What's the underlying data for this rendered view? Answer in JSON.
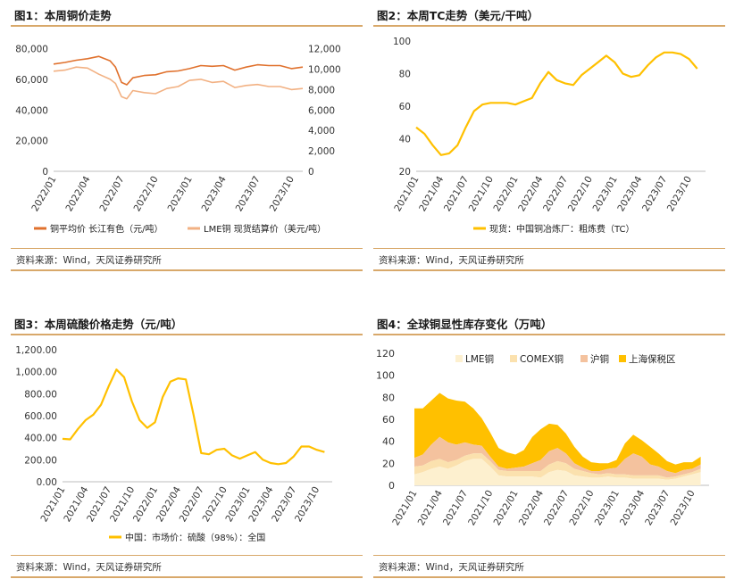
{
  "source_text": "资料来源：Wind，天风证券研究所",
  "colors": {
    "accent_rule": "#d8a86a",
    "dark_orange": "#E0712D",
    "light_orange": "#F2B183",
    "gold": "#FFC000",
    "lme_fill": "#FDF0CF",
    "comex_fill": "#FBE1AE",
    "shfe_fill": "#F4C29E",
    "bonded_fill": "#FFC000"
  },
  "charts": [
    {
      "title": "图1：本周铜价走势",
      "chart_data": {
        "type": "line",
        "x_tick_labels": [
          "2022/01",
          "2022/04",
          "2022/07",
          "2022/10",
          "2023/01",
          "2023/04",
          "2023/07",
          "2023/10"
        ],
        "x_range": [
          "2022/01",
          "2023/11"
        ],
        "y_left_ticks": [
          "0",
          "20,000",
          "40,000",
          "60,000",
          "80,000"
        ],
        "y_right_ticks": [
          "0",
          "2,000",
          "4,000",
          "6,000",
          "8,000",
          "10,000",
          "12,000"
        ],
        "ylim_left": [
          0,
          85000
        ],
        "ylim_right": [
          0,
          12750
        ],
        "series": [
          {
            "name": "铜平均价 长江有色（元/吨）",
            "axis": "left",
            "color": "#E0712D",
            "x": [
              "2022/01",
              "2022/02",
              "2022/03",
              "2022/04",
              "2022/05",
              "2022/06",
              "2022/06/15",
              "2022/07",
              "2022/07/15",
              "2022/08",
              "2022/09",
              "2022/10",
              "2022/11",
              "2022/12",
              "2023/01",
              "2023/02",
              "2023/03",
              "2023/04",
              "2023/05",
              "2023/06",
              "2023/07",
              "2023/08",
              "2023/09",
              "2023/10",
              "2023/11"
            ],
            "y": [
              70000,
              71000,
              72500,
              73500,
              75000,
              72000,
              68000,
              58000,
              56500,
              61000,
              62500,
              63000,
              65000,
              65500,
              67000,
              69000,
              68500,
              69000,
              66000,
              68000,
              69500,
              69000,
              69000,
              67000,
              68000
            ]
          },
          {
            "name": "LME铜 现货结算价（美元/吨）",
            "axis": "right",
            "color": "#F2B183",
            "x": [
              "2022/01",
              "2022/02",
              "2022/03",
              "2022/04",
              "2022/05",
              "2022/06",
              "2022/06/15",
              "2022/07",
              "2022/07/15",
              "2022/08",
              "2022/09",
              "2022/10",
              "2022/11",
              "2022/12",
              "2023/01",
              "2023/02",
              "2023/03",
              "2023/04",
              "2023/05",
              "2023/06",
              "2023/07",
              "2023/08",
              "2023/09",
              "2023/10",
              "2023/11"
            ],
            "y": [
              9800,
              9900,
              10200,
              10100,
              9500,
              9000,
              8600,
              7300,
              7100,
              7900,
              7700,
              7600,
              8100,
              8300,
              8900,
              9000,
              8700,
              8800,
              8200,
              8400,
              8500,
              8300,
              8300,
              8000,
              8100
            ]
          }
        ]
      }
    },
    {
      "title": "图2：本周TC走势（美元/干吨）",
      "chart_data": {
        "type": "line",
        "x_tick_labels": [
          "2021/01",
          "2021/04",
          "2021/07",
          "2021/10",
          "2022/01",
          "2022/04",
          "2022/07",
          "2022/10",
          "2023/01",
          "2023/04",
          "2023/07",
          "2023/10"
        ],
        "x_range": [
          "2021/01",
          "2023/12"
        ],
        "y_ticks": [
          "20",
          "40",
          "60",
          "80",
          "100"
        ],
        "ylim": [
          20,
          100
        ],
        "series": [
          {
            "name": "现货：中国铜冶炼厂：粗炼费（TC）",
            "color": "#FFC000",
            "x": [
              "2021/01",
              "2021/02",
              "2021/03",
              "2021/04",
              "2021/05",
              "2021/06",
              "2021/07",
              "2021/08",
              "2021/09",
              "2021/10",
              "2021/11",
              "2021/12",
              "2022/01",
              "2022/02",
              "2022/03",
              "2022/04",
              "2022/05",
              "2022/06",
              "2022/07",
              "2022/08",
              "2022/09",
              "2022/10",
              "2022/11",
              "2022/12",
              "2023/01",
              "2023/02",
              "2023/03",
              "2023/04",
              "2023/05",
              "2023/06",
              "2023/07",
              "2023/08",
              "2023/09",
              "2023/10",
              "2023/11"
            ],
            "y": [
              47,
              43,
              36,
              30,
              31,
              36,
              47,
              57,
              61,
              62,
              62,
              62,
              61,
              63,
              65,
              74,
              81,
              76,
              74,
              73,
              79,
              83,
              87,
              91,
              87,
              80,
              78,
              79,
              85,
              90,
              93,
              93,
              92,
              89,
              83
            ]
          }
        ]
      }
    },
    {
      "title": "图3：本周硫酸价格走势（元/吨）",
      "chart_data": {
        "type": "line",
        "x_tick_labels": [
          "2021/01",
          "2021/04",
          "2021/07",
          "2021/10",
          "2022/01",
          "2022/04",
          "2022/07",
          "2022/10",
          "2023/01",
          "2023/04",
          "2023/07",
          "2023/10"
        ],
        "x_range": [
          "2021/01",
          "2023/12"
        ],
        "y_ticks": [
          "0.00",
          "200.00",
          "400.00",
          "600.00",
          "800.00",
          "1,000.00",
          "1,200.00"
        ],
        "ylim": [
          0,
          1200
        ],
        "series": [
          {
            "name": "中国：市场价：硫酸（98%）：全国",
            "color": "#FFC000",
            "x": [
              "2021/01",
              "2021/02",
              "2021/03",
              "2021/04",
              "2021/05",
              "2021/06",
              "2021/07",
              "2021/08",
              "2021/09",
              "2021/10",
              "2021/11",
              "2021/12",
              "2022/01",
              "2022/02",
              "2022/03",
              "2022/04",
              "2022/05",
              "2022/06",
              "2022/07",
              "2022/08",
              "2022/09",
              "2022/10",
              "2022/11",
              "2022/12",
              "2023/01",
              "2023/02",
              "2023/03",
              "2023/04",
              "2023/05",
              "2023/06",
              "2023/07",
              "2023/08",
              "2023/09",
              "2023/10",
              "2023/11"
            ],
            "y": [
              390,
              385,
              480,
              560,
              610,
              700,
              870,
              1020,
              950,
              730,
              560,
              490,
              540,
              770,
              910,
              940,
              930,
              610,
              260,
              250,
              290,
              300,
              240,
              210,
              240,
              270,
              200,
              170,
              160,
              170,
              230,
              320,
              320,
              290,
              270
            ]
          }
        ]
      }
    },
    {
      "title": "图4：全球铜显性库存变化（万吨）",
      "chart_data": {
        "type": "area",
        "stacked": true,
        "x_tick_labels": [
          "2021/01",
          "2021/04",
          "2021/07",
          "2021/10",
          "2022/01",
          "2022/04",
          "2022/07",
          "2022/10",
          "2023/01",
          "2023/04",
          "2023/07",
          "2023/10"
        ],
        "x_range": [
          "2021/01",
          "2023/12"
        ],
        "y_ticks": [
          "0",
          "20",
          "40",
          "60",
          "80",
          "100",
          "120"
        ],
        "ylim": [
          0,
          120
        ],
        "legend_position": "top",
        "x": [
          "2021/01",
          "2021/02",
          "2021/03",
          "2021/04",
          "2021/05",
          "2021/06",
          "2021/07",
          "2021/08",
          "2021/09",
          "2021/10",
          "2021/11",
          "2021/12",
          "2022/01",
          "2022/02",
          "2022/03",
          "2022/04",
          "2022/05",
          "2022/06",
          "2022/07",
          "2022/08",
          "2022/09",
          "2022/10",
          "2022/11",
          "2022/12",
          "2023/01",
          "2023/02",
          "2023/03",
          "2023/04",
          "2023/05",
          "2023/06",
          "2023/07",
          "2023/08",
          "2023/09",
          "2023/10",
          "2023/11"
        ],
        "series": [
          {
            "name": "LME铜",
            "color": "#FDF0CF",
            "values": [
              10,
              12,
              15,
              17,
              15,
              18,
              22,
              24,
              24,
              17,
              9,
              8,
              8,
              8,
              8,
              7,
              12,
              14,
              13,
              9,
              8,
              7,
              7,
              8,
              7,
              7,
              6,
              6,
              6,
              6,
              5,
              6,
              8,
              10,
              12
            ]
          },
          {
            "name": "COMEX铜",
            "color": "#FBE1AE",
            "values": [
              7,
              6,
              7,
              7,
              6,
              5,
              5,
              5,
              5,
              5,
              5,
              5,
              5,
              5,
              5,
              6,
              7,
              8,
              7,
              6,
              5,
              4,
              3,
              3,
              3,
              3,
              3,
              3,
              3,
              3,
              2,
              2,
              2,
              2,
              3
            ]
          },
          {
            "name": "沪铜",
            "color": "#F4C29E",
            "values": [
              8,
              10,
              15,
              20,
              18,
              14,
              12,
              8,
              7,
              4,
              3,
              2,
              3,
              4,
              7,
              10,
              12,
              12,
              9,
              5,
              3,
              2,
              3,
              4,
              6,
              14,
              20,
              17,
              10,
              8,
              6,
              3,
              4,
              3,
              4
            ]
          },
          {
            "name": "上海保税区",
            "color": "#FFC000",
            "values": [
              45,
              42,
              40,
              40,
              40,
              40,
              37,
              33,
              25,
              22,
              17,
              15,
              12,
              15,
              24,
              28,
              25,
              21,
              18,
              15,
              10,
              8,
              7,
              5,
              7,
              14,
              17,
              15,
              16,
              12,
              9,
              8,
              7,
              6,
              7
            ]
          }
        ]
      }
    }
  ]
}
